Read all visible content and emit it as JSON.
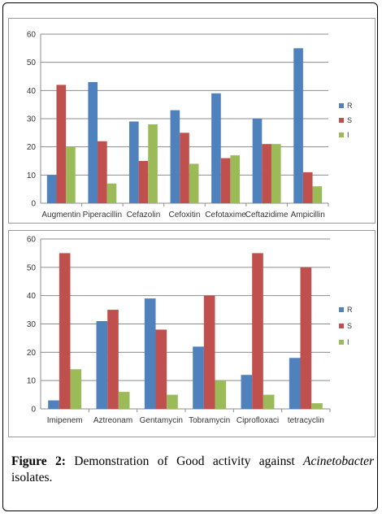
{
  "caption": {
    "label": "Figure 2:",
    "text_before": " Demonstration of Good activity against ",
    "italic": "Acinetobacter",
    "text_after": " isolates."
  },
  "colors": {
    "R": "#4f81bd",
    "S": "#c0504d",
    "I": "#9bbb59",
    "grid": "#8c8c8c",
    "axis": "#8c8c8c"
  },
  "chart_data": [
    {
      "type": "bar",
      "categories": [
        "Augmentin",
        "Piperacillin",
        "Cefazolin",
        "Cefoxitin",
        "Cefotaxime",
        "Ceftazidime",
        "Ampicillin"
      ],
      "series": [
        {
          "name": "R",
          "values": [
            10,
            43,
            29,
            33,
            39,
            30,
            55
          ]
        },
        {
          "name": "S",
          "values": [
            42,
            22,
            15,
            25,
            16,
            21,
            11
          ]
        },
        {
          "name": "I",
          "values": [
            20,
            7,
            28,
            14,
            17,
            21,
            6
          ]
        }
      ],
      "ylim": [
        0,
        60
      ],
      "yticks": [
        0,
        10,
        20,
        30,
        40,
        50,
        60
      ],
      "grid": true,
      "legend": "right"
    },
    {
      "type": "bar",
      "categories": [
        "Imipenem",
        "Aztreonam",
        "Gentamycin",
        "Tobramycin",
        "Ciprofloxaci",
        "tetracyclin"
      ],
      "series": [
        {
          "name": "R",
          "values": [
            3,
            31,
            39,
            22,
            12,
            18
          ]
        },
        {
          "name": "S",
          "values": [
            55,
            35,
            28,
            40,
            55,
            50
          ]
        },
        {
          "name": "I",
          "values": [
            14,
            6,
            5,
            10,
            5,
            2
          ]
        }
      ],
      "ylim": [
        0,
        60
      ],
      "yticks": [
        0,
        10,
        20,
        30,
        40,
        50,
        60
      ],
      "grid": true,
      "legend": "right"
    }
  ]
}
